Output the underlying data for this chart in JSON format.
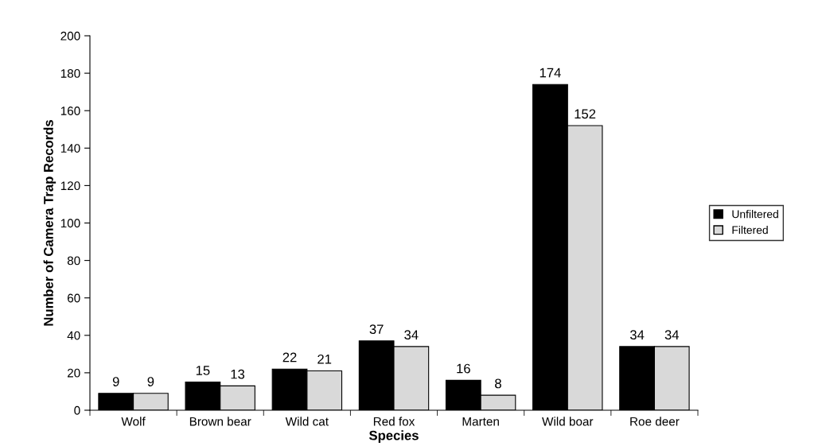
{
  "chart_data": {
    "type": "bar",
    "xlabel": "Species",
    "ylabel": "Number of Camera Trap Records",
    "categories": [
      "Wolf",
      "Brown bear",
      "Wild cat",
      "Red fox",
      "Marten",
      "Wild boar",
      "Roe deer"
    ],
    "series": [
      {
        "name": "Unfiltered",
        "color": "#000000",
        "values": [
          9,
          15,
          22,
          37,
          16,
          174,
          34
        ]
      },
      {
        "name": "Filtered",
        "color": "#d9d9d9",
        "values": [
          9,
          13,
          21,
          34,
          8,
          152,
          34
        ]
      }
    ],
    "ylim": [
      0,
      200
    ],
    "yticks": [
      0,
      20,
      40,
      60,
      80,
      100,
      120,
      140,
      160,
      180,
      200
    ],
    "data_labels": true,
    "legend": "right",
    "grid": false
  }
}
